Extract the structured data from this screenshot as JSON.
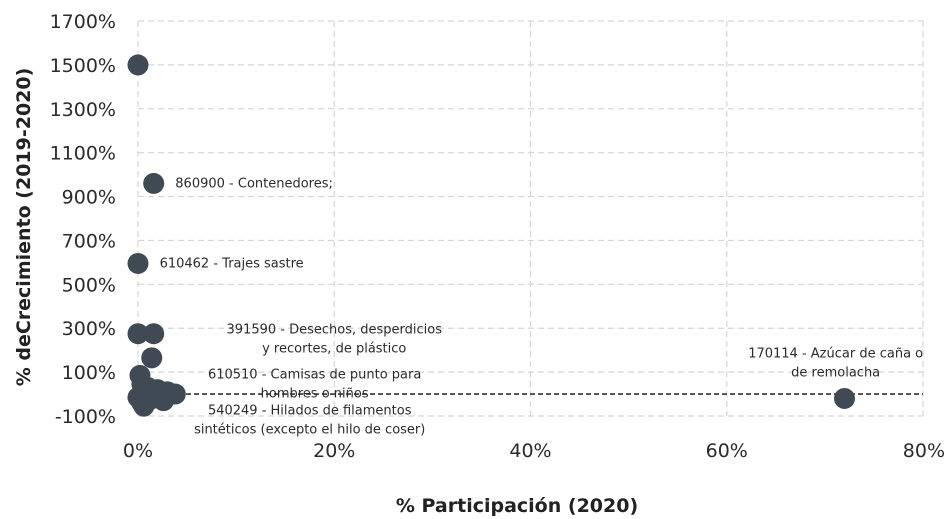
{
  "chart_data": {
    "type": "scatter",
    "xlabel": "% Participación (2020)",
    "ylabel": "% deCrecimiento (2019-2020)",
    "xlim": [
      0,
      0.8
    ],
    "ylim": [
      -1,
      17
    ],
    "x_ticks": [
      "0%",
      "20%",
      "40%",
      "60%",
      "80%"
    ],
    "y_ticks": [
      "-100%",
      "100%",
      "300%",
      "500%",
      "700%",
      "900%",
      "1100%",
      "1300%",
      "1500%",
      "1700%"
    ],
    "grid": true,
    "marker_color": "#3f4a54",
    "reference_line": {
      "y": 0,
      "style": "dashed",
      "color": "#333333"
    },
    "points": [
      {
        "x": 0.0,
        "y": 15.0
      },
      {
        "x": 0.016,
        "y": 9.6
      },
      {
        "x": 0.0,
        "y": 5.95
      },
      {
        "x": 0.016,
        "y": 2.75
      },
      {
        "x": 0.0,
        "y": 2.75
      },
      {
        "x": 0.014,
        "y": 1.65
      },
      {
        "x": 0.002,
        "y": 0.85
      },
      {
        "x": 0.004,
        "y": 0.45
      },
      {
        "x": 0.01,
        "y": 0.3
      },
      {
        "x": 0.02,
        "y": 0.2
      },
      {
        "x": 0.03,
        "y": 0.1
      },
      {
        "x": 0.038,
        "y": 0.0
      },
      {
        "x": 0.026,
        "y": -0.3
      },
      {
        "x": 0.012,
        "y": -0.25
      },
      {
        "x": 0.004,
        "y": -0.4
      },
      {
        "x": 0.006,
        "y": -0.55
      },
      {
        "x": 0.0,
        "y": -0.15
      },
      {
        "x": 0.72,
        "y": -0.2
      }
    ],
    "annotations": [
      {
        "lines": [
          "860900 - Contenedores;"
        ],
        "x": 0.038,
        "y": 9.6,
        "anchor": "start"
      },
      {
        "lines": [
          "610462 - Trajes sastre"
        ],
        "x": 0.022,
        "y": 5.95,
        "anchor": "start"
      },
      {
        "lines": [
          "391590 - Desechos, desperdicios",
          "y recortes, de plástico"
        ],
        "x": 0.2,
        "y": 2.95,
        "anchor": "middle"
      },
      {
        "lines": [
          "610510 - Camisas de punto para",
          "hombres o niños"
        ],
        "x": 0.18,
        "y": 0.9,
        "anchor": "middle"
      },
      {
        "lines": [
          "540249 - Hilados de filamentos",
          "sintéticos (excepto el hilo de coser)"
        ],
        "x": 0.175,
        "y": -0.75,
        "anchor": "middle"
      },
      {
        "lines": [
          "170114 - Azúcar de caña o",
          "de remolacha"
        ],
        "x": 0.711,
        "y": 1.85,
        "anchor": "middle"
      }
    ]
  }
}
